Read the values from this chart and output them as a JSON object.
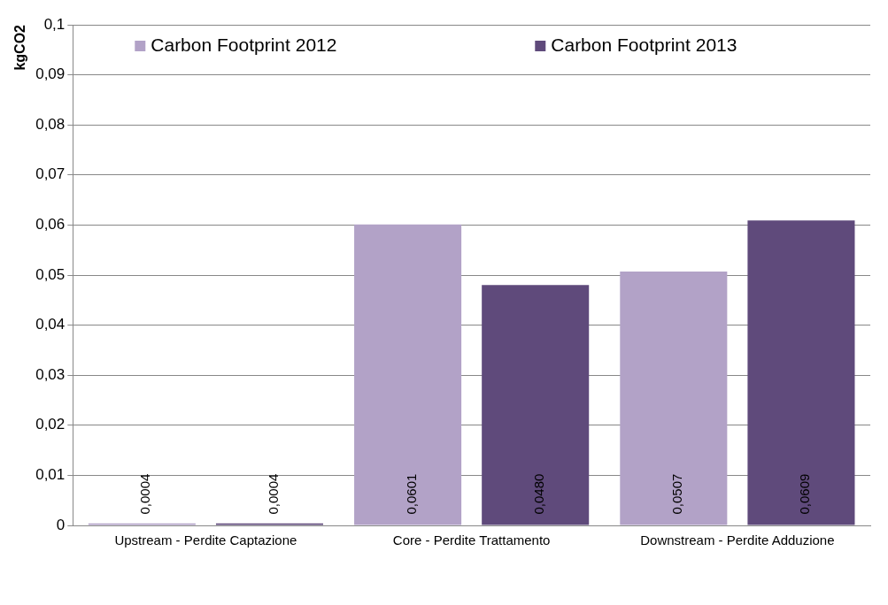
{
  "chart_data": {
    "type": "bar",
    "ylabel": "kgCO2",
    "categories": [
      "Upstream - Perdite Captazione",
      "Core - Perdite Trattamento",
      "Downstream - Perdite Adduzione"
    ],
    "series": [
      {
        "name": "Carbon Footprint 2012",
        "color": "#b2a2c7",
        "values": [
          0.0004,
          0.0601,
          0.0507
        ],
        "value_labels": [
          "0,0004",
          "0,0601",
          "0,0507"
        ]
      },
      {
        "name": "Carbon Footprint 2013",
        "color": "#5f4a7b",
        "values": [
          0.0004,
          0.048,
          0.0609
        ],
        "value_labels": [
          "0,0004",
          "0,0480",
          "0,0609"
        ]
      }
    ],
    "ylim": [
      0,
      0.1
    ],
    "yticks": [
      0,
      {
        "value": 0.01,
        "label": "0,01"
      },
      {
        "value": 0.02,
        "label": "0,02"
      },
      {
        "value": 0.03,
        "label": "0,03"
      },
      {
        "value": 0.04,
        "label": "0,04"
      },
      {
        "value": 0.05,
        "label": "0,05"
      },
      {
        "value": 0.06,
        "label": "0,06"
      },
      {
        "value": 0.07,
        "label": "0,07"
      },
      {
        "value": 0.08,
        "label": "0,08"
      },
      {
        "value": 0.09,
        "label": "0,09"
      },
      {
        "value": 0.1,
        "label": "0,1"
      }
    ],
    "grid": "y",
    "legend": "top"
  }
}
